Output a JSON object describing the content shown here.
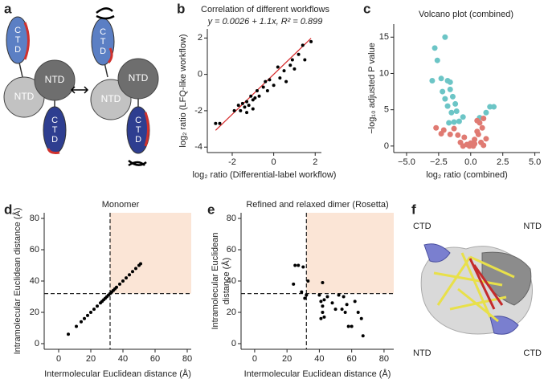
{
  "panels": [
    "a",
    "b",
    "c",
    "d",
    "e",
    "f"
  ],
  "diagram_a": {
    "domains": [
      "CTD",
      "NTD",
      "NTD",
      "CTD",
      "CTD",
      "NTD",
      "NTD",
      "CTD"
    ]
  },
  "structure_f": {
    "labels": [
      "CTD",
      "NTD",
      "NTD",
      "CTD"
    ]
  },
  "chart_data": [
    {
      "type": "scatter",
      "title": "Correlation of different workflows",
      "subtitle": "y = 0.0026 + 1.1x, R² = 0.899",
      "xlabel": "log₂ ratio (Differential-label workflow)",
      "ylabel": [
        "log₂ ratio (LFQ-like workflow)"
      ],
      "xlim": [
        -3.2,
        2.3
      ],
      "ylim": [
        -4.3,
        2.5
      ],
      "xticks": [
        -2,
        0,
        2
      ],
      "yticks": [
        -4,
        -2,
        0,
        2
      ],
      "fit": {
        "intercept": 0.0026,
        "slope": 1.1,
        "color": "#d62728"
      },
      "series": [
        {
          "color": "#000000",
          "x": [
            -2.8,
            -2.6,
            -1.9,
            -1.7,
            -1.6,
            -1.5,
            -1.4,
            -1.3,
            -1.3,
            -1.2,
            -1.1,
            -1.0,
            -1.0,
            -0.9,
            -0.8,
            -0.7,
            -0.5,
            -0.4,
            -0.3,
            -0.2,
            0.0,
            0.2,
            0.3,
            0.5,
            0.6,
            0.8,
            0.9,
            1.0,
            1.2,
            1.4,
            1.5,
            1.8
          ],
          "values": [
            -2.7,
            -2.7,
            -2.0,
            -1.7,
            -2.0,
            -1.6,
            -1.8,
            -1.5,
            -2.1,
            -1.7,
            -1.2,
            -1.9,
            -1.4,
            -1.3,
            -0.9,
            -1.2,
            -0.7,
            -0.4,
            -0.9,
            -0.3,
            -0.6,
            0.4,
            -0.2,
            0.2,
            -0.4,
            0.5,
            0.8,
            0.3,
            1.1,
            1.6,
            0.8,
            1.8
          ]
        }
      ]
    },
    {
      "type": "scatter",
      "title": "Volcano plot (combined)",
      "xlabel": "log₂ ratio (combined)",
      "ylabel": [
        "−log₁₀ adjusted P value"
      ],
      "xlim": [
        -6,
        5.4
      ],
      "ylim": [
        -0.9,
        16.8
      ],
      "xticks": [
        {
          "value": -5,
          "label": "−5.0"
        },
        {
          "value": -2.5,
          "label": "−2.5"
        },
        {
          "value": 0,
          "label": "0.0"
        },
        2.5,
        {
          "value": 5,
          "label": "5.0"
        }
      ],
      "yticks": [
        0,
        5,
        10,
        15
      ],
      "series": [
        {
          "color": "#6cc5c6",
          "x": [
            -2.0,
            -2.8,
            -2.6,
            -3.0,
            -2.3,
            -1.8,
            -1.6,
            -2.2,
            -1.6,
            -1.4,
            -2.0,
            -1.8,
            -1.2,
            -1.5,
            -1.1,
            -1.3,
            -1.7,
            -0.9,
            1.2,
            1.5,
            1.8,
            0.7,
            -0.6
          ],
          "values": [
            15.0,
            13.5,
            11.8,
            9.0,
            9.3,
            9.0,
            8.8,
            7.5,
            7.8,
            6.8,
            6.5,
            5.5,
            5.8,
            4.6,
            4.8,
            3.3,
            3.2,
            3.4,
            4.6,
            5.4,
            5.4,
            3.9,
            4.0
          ]
        },
        {
          "color": "#e07a72",
          "x": [
            -2.7,
            -2.3,
            -2.1,
            -1.6,
            -1.3,
            -1.0,
            -0.8,
            -0.5,
            -0.3,
            -0.1,
            0.0,
            0.2,
            0.3,
            0.5,
            0.7,
            0.9,
            1.0,
            0.5,
            0.8,
            1.2,
            1.0,
            -0.6,
            0.3,
            0.6
          ],
          "values": [
            2.5,
            1.7,
            2.2,
            1.6,
            2.4,
            1.5,
            0.5,
            1.2,
            0.2,
            0.0,
            0.4,
            0.0,
            0.9,
            2.0,
            3.2,
            2.5,
            3.8,
            3.5,
            0.5,
            1.0,
            0.1,
            0.0,
            0.3,
            1.6
          ]
        }
      ]
    },
    {
      "type": "scatter",
      "title": "Monomer",
      "xlabel": "Intermolecular Euclidean distance (Å)",
      "ylabel": [
        "Intramolecular Euclidean distance (Å)"
      ],
      "xlim": [
        -9,
        82.5
      ],
      "ylim": [
        -3.6,
        83.6
      ],
      "xticks": [
        0,
        20,
        40,
        60,
        80
      ],
      "yticks": [
        0,
        20,
        40,
        60,
        80
      ],
      "thresholds": {
        "x": 32,
        "y": 32
      },
      "shade_color": "#fbe5d6",
      "series": [
        {
          "color": "#000000",
          "x": [
            6,
            11,
            14,
            16,
            18,
            20,
            22,
            24,
            26,
            27,
            28,
            29,
            30,
            31,
            32,
            33,
            34,
            35,
            36,
            38,
            40,
            42,
            44,
            46,
            48,
            50,
            51
          ],
          "values": [
            6,
            11,
            14,
            16,
            18,
            20,
            22,
            24,
            26,
            27,
            28,
            29,
            30,
            31,
            32,
            33,
            34,
            35,
            36,
            38,
            40,
            42,
            44,
            46,
            48,
            50,
            51
          ]
        }
      ]
    },
    {
      "type": "scatter",
      "title": "Refined and relaxed dimer (Rosetta)",
      "xlabel": "Intermolecular Euclidean distance (Å)",
      "ylabel": [
        "Intramolecular Euclidean",
        "distance (Å)"
      ],
      "xlim": [
        -8.4,
        86
      ],
      "ylim": [
        -3.6,
        83.6
      ],
      "xticks": [
        0,
        20,
        40,
        60,
        80
      ],
      "yticks": [
        0,
        20,
        40,
        60,
        80
      ],
      "thresholds": {
        "x": 32,
        "y": 32
      },
      "shade_color": "#fbe5d6",
      "series": [
        {
          "color": "#000000",
          "x": [
            25,
            27,
            30,
            24,
            29,
            31,
            32,
            33,
            42,
            40,
            41,
            42,
            43,
            42,
            41,
            43,
            45,
            48,
            50,
            52,
            55,
            54,
            56,
            57,
            58,
            60,
            62,
            64,
            66,
            67
          ],
          "values": [
            50,
            50,
            49,
            38,
            33,
            29,
            31,
            40,
            39,
            31,
            27,
            24,
            28,
            20,
            16,
            17,
            30,
            26,
            22,
            31,
            30,
            22,
            20,
            25,
            11,
            11,
            27,
            20,
            16,
            5
          ]
        }
      ]
    }
  ]
}
